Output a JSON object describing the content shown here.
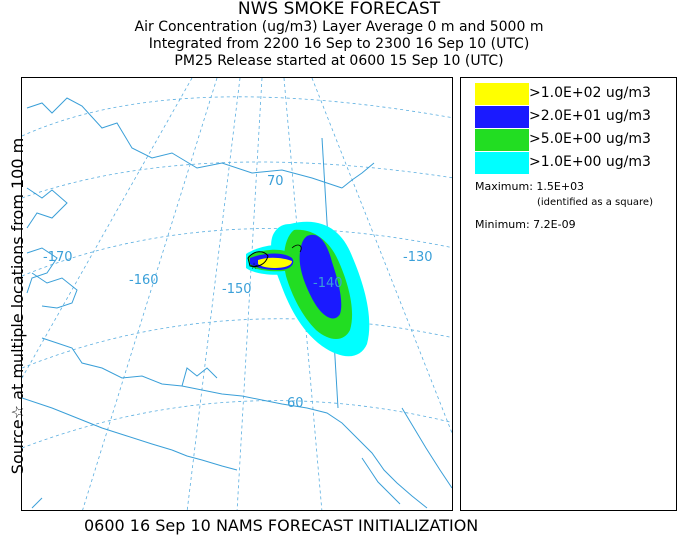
{
  "title": {
    "line1": "NWS SMOKE FORECAST",
    "line2": "Air Concentration (ug/m3) Layer Average    0 m and  5000 m",
    "line3": "Integrated from 2200 16 Sep to 2300 16 Sep 10 (UTC)",
    "line4": "PM25 Release started at 0600 15 Sep 10 (UTC)"
  },
  "side_label": "Source☆   at multiple locations   from   100 m",
  "footer": "0600 16 Sep 10 NAMS FORECAST INITIALIZATION",
  "map": {
    "longitude_labels": [
      "-170",
      "-160",
      "-150",
      "-140",
      "-130"
    ],
    "latitude_labels": [
      "70",
      "60"
    ],
    "colors": {
      "coast": "#3a9fd8",
      "grid": "#5aaee0",
      "label": "#3a9fd8"
    }
  },
  "legend": {
    "entries": [
      {
        "label": ">1.0E+02 ug/m3",
        "color": "#ffff00"
      },
      {
        "label": ">2.0E+01 ug/m3",
        "color": "#1a1aff"
      },
      {
        "label": ">5.0E+00 ug/m3",
        "color": "#22dd22"
      },
      {
        "label": ">1.0E+00 ug/m3",
        "color": "#00ffff"
      }
    ],
    "maximum": "Maximum: 1.5E+03",
    "maximum_note": "(identified as a square)",
    "minimum": "Minimum: 7.2E-09"
  }
}
